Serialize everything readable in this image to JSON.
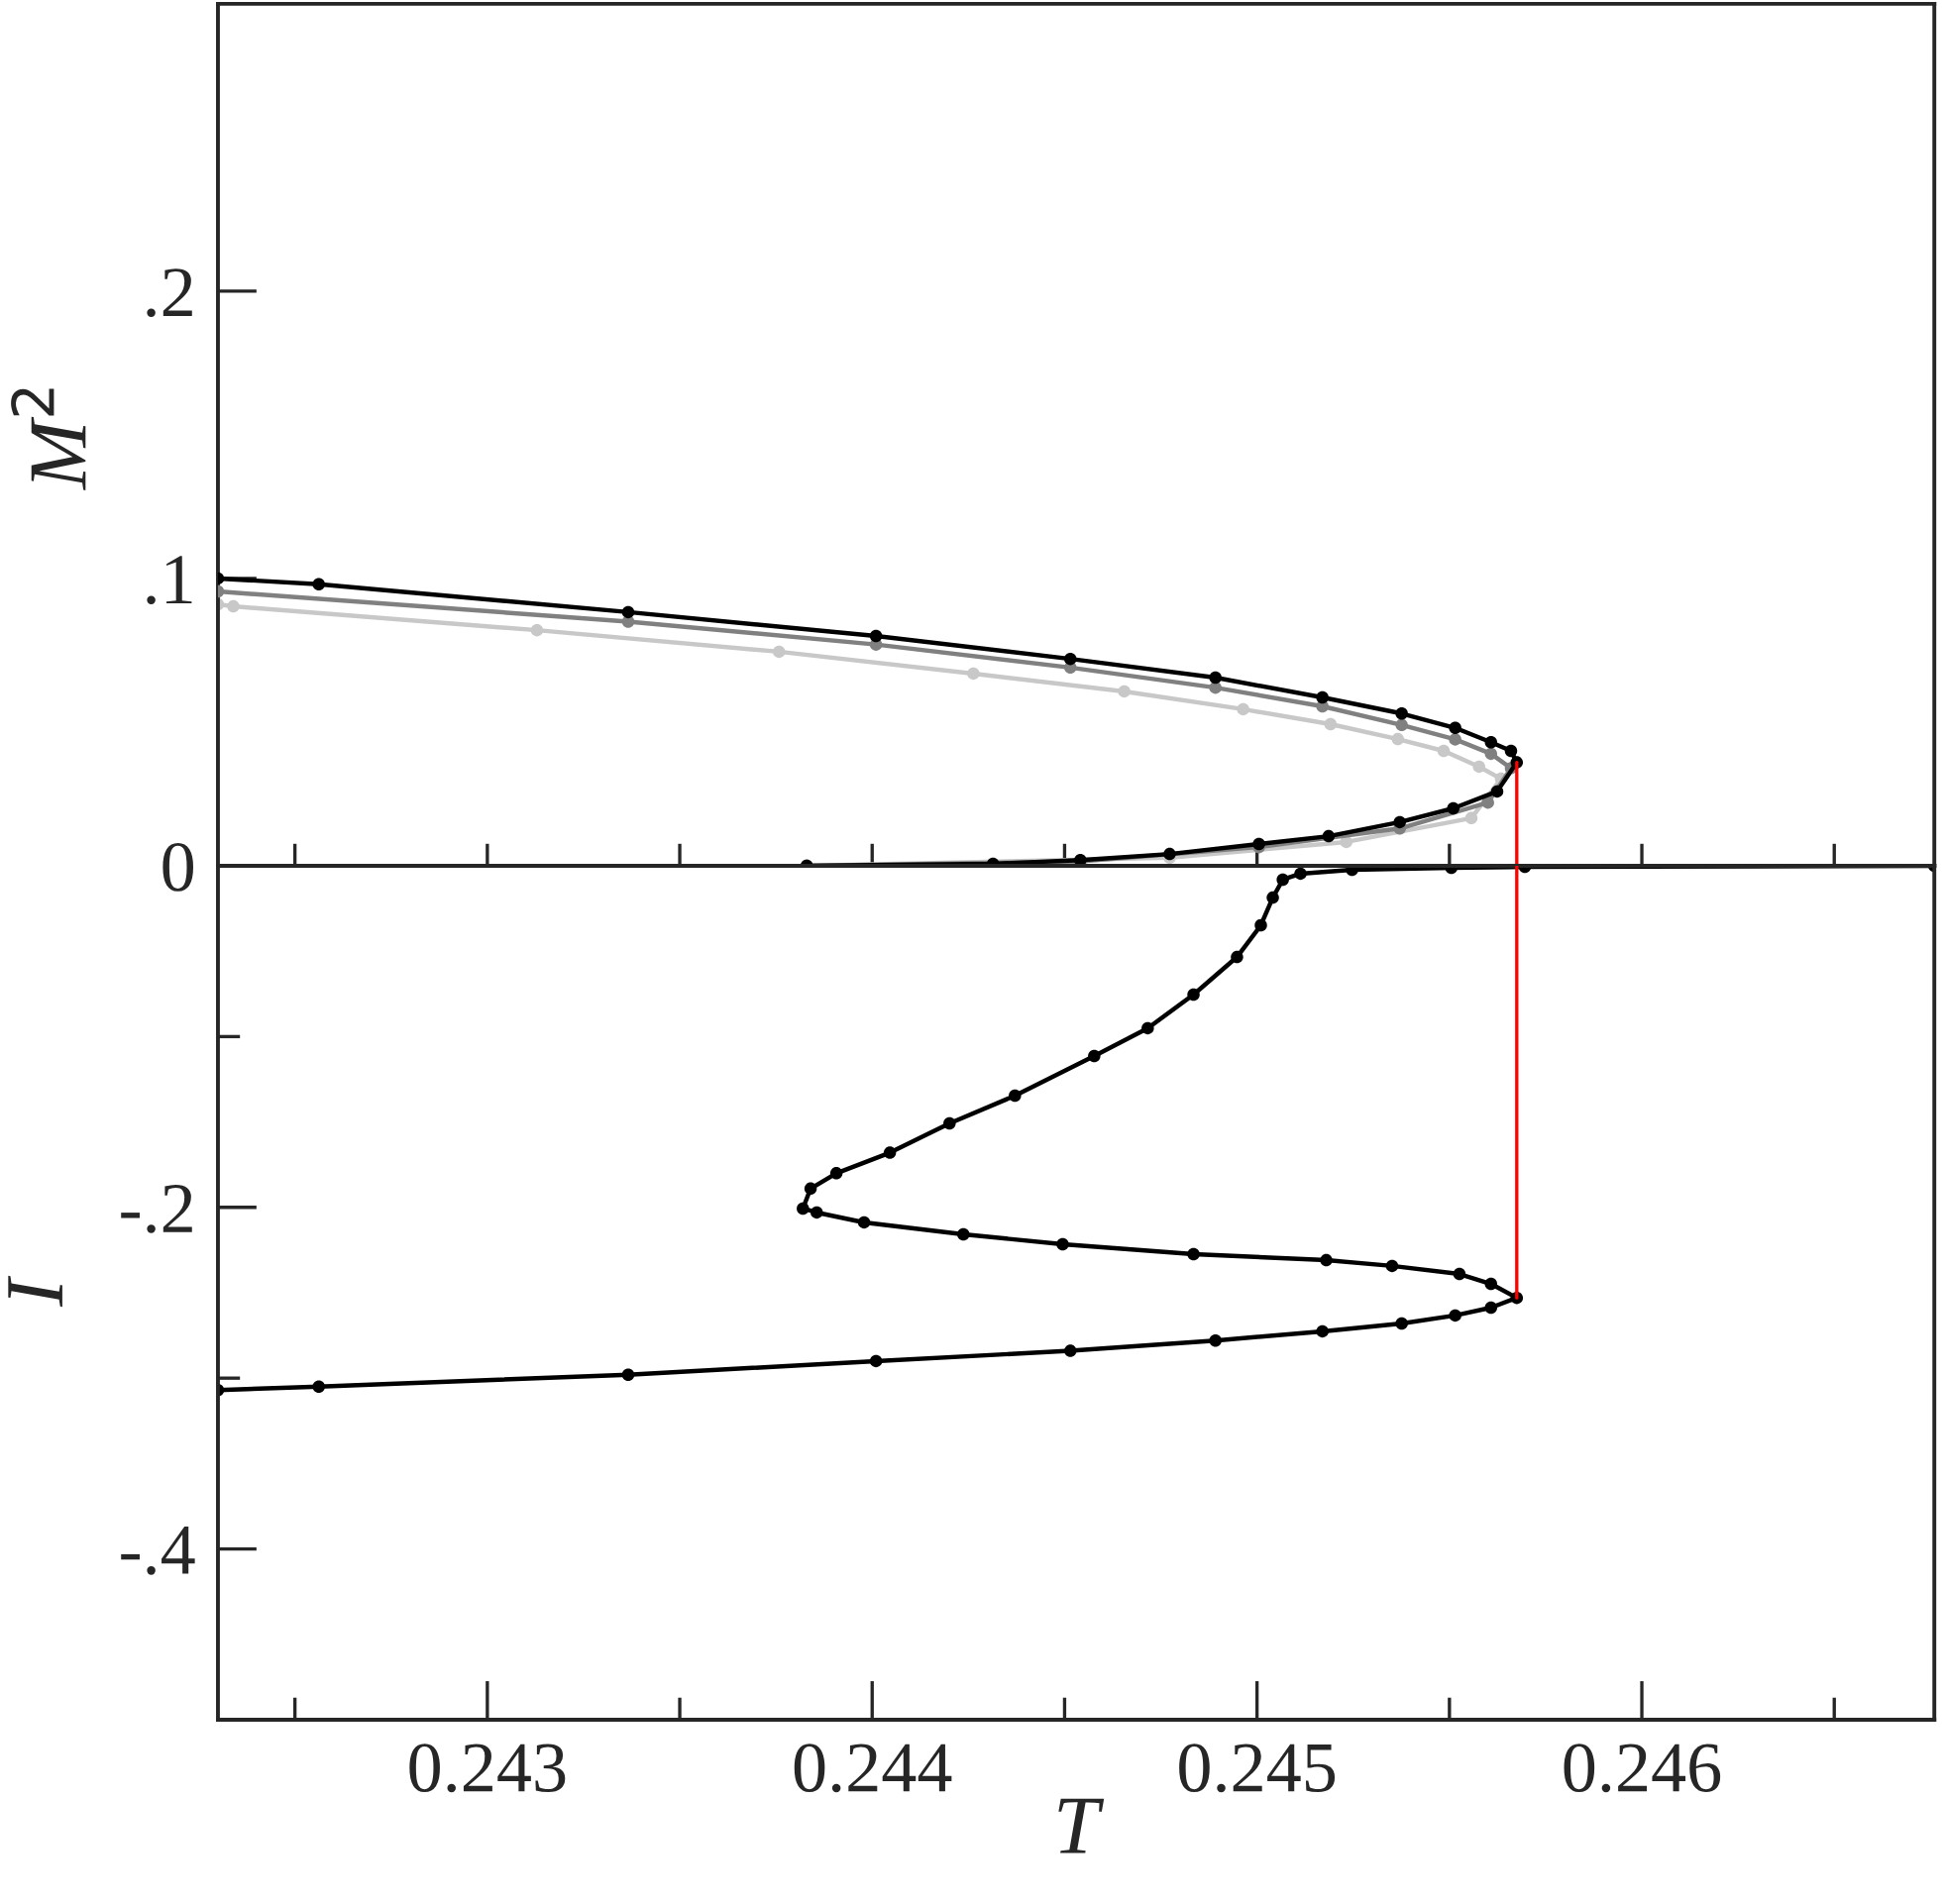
{
  "chart_data": [
    {
      "type": "line",
      "ylabel": "M$^{2}$",
      "xlim": [
        0.2423,
        0.24676
      ],
      "ylim": [
        0,
        0.3
      ],
      "xticks": [
        {
          "value": 0.2425,
          "label": null
        },
        {
          "value": 0.243,
          "label": null
        },
        {
          "value": 0.2435,
          "label": null
        },
        {
          "value": 0.244,
          "label": null
        },
        {
          "value": 0.2445,
          "label": null
        },
        {
          "value": 0.245,
          "label": null
        },
        {
          "value": 0.2455,
          "label": null
        },
        {
          "value": 0.246,
          "label": null
        },
        {
          "value": 0.2465,
          "label": null
        }
      ],
      "yticks": [
        {
          "value": 0,
          "label": "0"
        },
        {
          "value": 0.1,
          "label": ".1"
        },
        {
          "value": 0.2,
          "label": ".2"
        }
      ],
      "tick_labels": "y",
      "marker": "circle",
      "line_style": "solid",
      "series": [
        {
          "color": "#c8c8c8",
          "x": [
            0.2423,
            0.24234,
            0.243129,
            0.243758,
            0.244263,
            0.244655,
            0.244964,
            0.245191,
            0.245366,
            0.245485,
            0.245577,
            0.245634,
            0.245557,
            0.245232,
            0.244773,
            0.24383
          ],
          "values": [
            0.091,
            0.0903,
            0.082,
            0.0745,
            0.0669,
            0.0607,
            0.0545,
            0.0493,
            0.0441,
            0.04,
            0.0345,
            0.0303,
            0.0166,
            0.0083,
            0.0028,
            0
          ]
        },
        {
          "color": "#808080",
          "x": [
            0.2423,
            0.243366,
            0.24401,
            0.244515,
            0.244892,
            0.24517,
            0.245376,
            0.245515,
            0.245608,
            0.24566,
            0.2456,
            0.245371,
            0.245005,
            0.244541,
            0.24383
          ],
          "values": [
            0.0955,
            0.085,
            0.077,
            0.069,
            0.062,
            0.0555,
            0.049,
            0.044,
            0.039,
            0.034,
            0.022,
            0.013,
            0.0065,
            0.0015,
            0
          ]
        },
        {
          "color": "#000000",
          "x": [
            0.2423,
            0.242562,
            0.243366,
            0.24401,
            0.244515,
            0.244892,
            0.24517,
            0.245376,
            0.245515,
            0.245608,
            0.24566,
            0.245675,
            0.245624,
            0.24551,
            0.245371,
            0.245186,
            0.245005,
            0.244773,
            0.244541,
            0.244314,
            0.24383
          ],
          "values": [
            0.1,
            0.098,
            0.0883,
            0.08,
            0.072,
            0.0655,
            0.0586,
            0.053,
            0.048,
            0.043,
            0.04,
            0.036,
            0.0259,
            0.02,
            0.0152,
            0.0103,
            0.0076,
            0.0041,
            0.002,
            0.0007,
            0
          ]
        },
        {
          "color": "#ff0000",
          "marker": "none",
          "x": [
            0.245675,
            0.245675
          ],
          "values": [
            0,
            0.036
          ]
        }
      ]
    },
    {
      "type": "line",
      "ylabel": "I",
      "xlabel": "T",
      "xlim": [
        0.2423,
        0.24676
      ],
      "ylim": [
        -0.5,
        0
      ],
      "xticks": [
        {
          "value": 0.2425,
          "label": null
        },
        {
          "value": 0.243,
          "label": "0.243"
        },
        {
          "value": 0.2435,
          "label": null
        },
        {
          "value": 0.244,
          "label": "0.244"
        },
        {
          "value": 0.2445,
          "label": null
        },
        {
          "value": 0.245,
          "label": "0.245"
        },
        {
          "value": 0.2455,
          "label": null
        },
        {
          "value": 0.246,
          "label": "0.246"
        },
        {
          "value": 0.2465,
          "label": null
        }
      ],
      "yticks": [
        {
          "value": -0.1,
          "label": null
        },
        {
          "value": -0.2,
          "label": "-.2"
        },
        {
          "value": -0.3,
          "label": null
        },
        {
          "value": -0.4,
          "label": "-.4"
        }
      ],
      "marker": "circle",
      "line_style": "solid",
      "series": [
        {
          "color": "#000000",
          "x": [
            0.2423,
            0.242562,
            0.243366,
            0.24401,
            0.244515,
            0.244892,
            0.24517,
            0.245376,
            0.245515,
            0.245608,
            0.245675,
            0.245608,
            0.245526,
            0.245351,
            0.24518,
            0.244835,
            0.244495,
            0.244237,
            0.243979,
            0.243856,
            0.24382,
            0.24384,
            0.243907,
            0.244046,
            0.244201,
            0.244371,
            0.244577,
            0.244716,
            0.244835,
            0.244948,
            0.24501,
            0.245041,
            0.245067,
            0.245113,
            0.245247,
            0.245505,
            0.245696,
            0.24676
          ],
          "values": [
            -0.307,
            -0.305,
            -0.298,
            -0.29,
            -0.284,
            -0.278,
            -0.2726,
            -0.268,
            -0.2633,
            -0.2587,
            -0.253,
            -0.2448,
            -0.239,
            -0.2343,
            -0.2309,
            -0.2274,
            -0.2216,
            -0.2158,
            -0.2088,
            -0.203,
            -0.2007,
            -0.189,
            -0.18,
            -0.168,
            -0.1508,
            -0.1346,
            -0.1114,
            -0.0951,
            -0.0754,
            -0.0534,
            -0.0348,
            -0.0186,
            -0.0081,
            -0.0046,
            -0.0023,
            -0.0012,
            -0.0006,
            0
          ]
        },
        {
          "color": "#ff0000",
          "marker": "none",
          "x": [
            0.245675,
            0.245675
          ],
          "values": [
            0,
            -0.253
          ]
        }
      ]
    }
  ]
}
